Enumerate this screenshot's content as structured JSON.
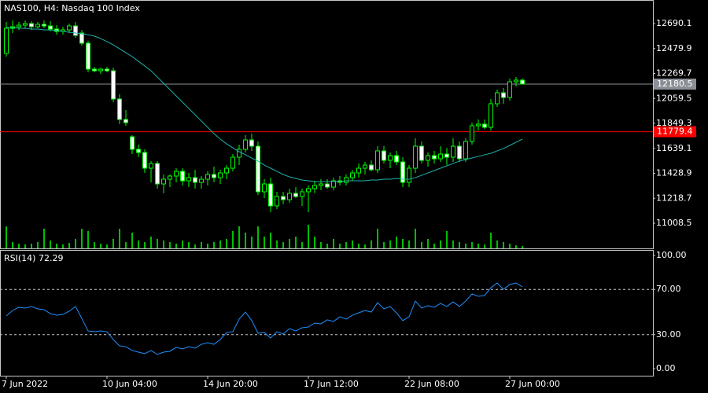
{
  "chart_data": [
    {
      "type": "candlestick",
      "title": "NAS100, H4:  Nasdaq 100 Index",
      "categories": [
        "7 Jun 2022",
        null,
        null,
        null,
        null,
        null,
        null,
        null,
        null,
        null,
        null,
        null,
        null,
        null,
        null,
        null,
        "10 Jun 04:00",
        null,
        null,
        null,
        null,
        null,
        null,
        null,
        null,
        null,
        null,
        null,
        null,
        null,
        null,
        null,
        "14 Jun 20:00",
        null,
        null,
        null,
        null,
        null,
        null,
        null,
        null,
        null,
        null,
        null,
        null,
        null,
        null,
        null,
        "17 Jun 12:00",
        null,
        null,
        null,
        null,
        null,
        null,
        null,
        null,
        null,
        null,
        null,
        null,
        null,
        null,
        null,
        "22 Jun 08:00",
        null,
        null,
        null,
        null,
        null,
        null,
        null,
        null,
        null,
        null,
        null,
        null,
        null,
        null,
        null,
        "27 Jun 00:00",
        null,
        null
      ],
      "ohlc": [
        [
          12438.5,
          12703.3,
          12412.1,
          12650.4
        ],
        [
          12650.4,
          12716.6,
          12610.7,
          12663.6
        ],
        [
          12663.6,
          12703.3,
          12637.1,
          12676.9
        ],
        [
          12676.9,
          12716.6,
          12650.4,
          12690.1
        ],
        [
          12690.1,
          12710.0,
          12637.1,
          12663.6
        ],
        [
          12663.6,
          12703.3,
          12650.4,
          12683.5
        ],
        [
          12683.5,
          12716.6,
          12650.4,
          12670.2
        ],
        [
          12670.2,
          12710.0,
          12623.9,
          12643.8
        ],
        [
          12643.8,
          12676.9,
          12597.4,
          12623.9
        ],
        [
          12623.9,
          12663.6,
          12597.4,
          12637.1
        ],
        [
          12637.1,
          12690.1,
          12610.7,
          12670.2
        ],
        [
          12670.2,
          12703.3,
          12570.9,
          12590.8
        ],
        [
          12610.7,
          12637.1,
          12504.7,
          12524.6
        ],
        [
          12524.6,
          12544.5,
          12279.7,
          12306.1
        ],
        [
          12306.1,
          12326.0,
          12279.7,
          12292.9
        ],
        [
          12292.9,
          12319.4,
          12266.4,
          12306.1
        ],
        [
          12306.1,
          12326.0,
          12279.7,
          12292.9
        ],
        [
          12292.9,
          12319.4,
          12028.1,
          12054.6
        ],
        [
          12054.6,
          12094.3,
          11842.7,
          11882.5
        ],
        [
          11882.5,
          11961.9,
          11829.5,
          11856.0
        ],
        [
          11736.8,
          11750.1,
          11591.2,
          11630.9
        ],
        [
          11630.9,
          11670.6,
          11564.7,
          11604.4
        ],
        [
          11604.4,
          11630.9,
          11432.3,
          11472.0
        ],
        [
          11472.0,
          11531.6,
          11352.9,
          11511.7
        ],
        [
          11511.7,
          11531.6,
          11299.9,
          11339.6
        ],
        [
          11339.6,
          11419.1,
          11260.2,
          11379.3
        ],
        [
          11379.3,
          11419.1,
          11313.1,
          11405.8
        ],
        [
          11405.8,
          11472.0,
          11352.9,
          11445.5
        ],
        [
          11445.5,
          11472.0,
          11326.4,
          11366.1
        ],
        [
          11366.1,
          11432.3,
          11313.1,
          11392.6
        ],
        [
          11392.6,
          11458.8,
          11299.9,
          11352.9
        ],
        [
          11352.9,
          11405.8,
          11299.9,
          11379.3
        ],
        [
          11379.3,
          11445.5,
          11326.4,
          11419.1
        ],
        [
          11419.1,
          11485.3,
          11352.9,
          11392.6
        ],
        [
          11392.6,
          11458.8,
          11339.6,
          11432.3
        ],
        [
          11432.3,
          11498.5,
          11379.3,
          11472.0
        ],
        [
          11472.0,
          11591.2,
          11445.5,
          11564.7
        ],
        [
          11564.7,
          11670.6,
          11498.5,
          11630.9
        ],
        [
          11630.9,
          11750.1,
          11604.4,
          11710.3
        ],
        [
          11710.3,
          11763.3,
          11617.7,
          11657.4
        ],
        [
          11657.4,
          11697.1,
          11246.9,
          11273.4
        ],
        [
          11273.4,
          11379.3,
          11220.5,
          11339.6
        ],
        [
          11339.6,
          11392.6,
          11101.3,
          11154.3
        ],
        [
          11154.3,
          11273.4,
          11127.8,
          11233.7
        ],
        [
          11233.7,
          11273.4,
          11167.5,
          11207.2
        ],
        [
          11207.2,
          11299.9,
          11180.7,
          11260.2
        ],
        [
          11260.2,
          11313.1,
          11220.5,
          11233.7
        ],
        [
          11233.7,
          11299.9,
          11154.3,
          11273.4
        ],
        [
          11273.4,
          11326.4,
          11101.3,
          11299.9
        ],
        [
          11299.9,
          11366.1,
          11260.2,
          11326.4
        ],
        [
          11326.4,
          11379.3,
          11286.7,
          11339.6
        ],
        [
          11339.6,
          11379.3,
          11299.9,
          11313.1
        ],
        [
          11313.1,
          11392.6,
          11286.7,
          11366.1
        ],
        [
          11366.1,
          11405.8,
          11326.4,
          11352.9
        ],
        [
          11352.9,
          11419.1,
          11326.4,
          11392.6
        ],
        [
          11392.6,
          11458.8,
          11366.1,
          11432.3
        ],
        [
          11432.3,
          11511.7,
          11392.6,
          11472.0
        ],
        [
          11472.0,
          11525.0,
          11419.1,
          11498.5
        ],
        [
          11498.5,
          11538.2,
          11445.5,
          11458.8
        ],
        [
          11458.8,
          11657.4,
          11432.3,
          11617.7
        ],
        [
          11617.7,
          11657.4,
          11511.7,
          11538.2
        ],
        [
          11538.2,
          11604.4,
          11472.0,
          11577.9
        ],
        [
          11577.9,
          11617.7,
          11498.5,
          11525.0
        ],
        [
          11525.0,
          11564.7,
          11313.1,
          11352.9
        ],
        [
          11352.9,
          11498.5,
          11313.1,
          11472.0
        ],
        [
          11472.0,
          11723.6,
          11432.3,
          11657.4
        ],
        [
          11657.4,
          11697.1,
          11511.7,
          11538.2
        ],
        [
          11538.2,
          11604.4,
          11485.3,
          11577.9
        ],
        [
          11577.9,
          11617.7,
          11511.7,
          11551.5
        ],
        [
          11551.5,
          11657.4,
          11525.0,
          11591.2
        ],
        [
          11591.2,
          11644.1,
          11498.5,
          11564.7
        ],
        [
          11564.7,
          11723.6,
          11525.0,
          11657.4
        ],
        [
          11657.4,
          11697.1,
          11525.0,
          11551.5
        ],
        [
          11551.5,
          11723.6,
          11525.0,
          11697.1
        ],
        [
          11697.1,
          11856.0,
          11670.6,
          11829.5
        ],
        [
          11829.5,
          11882.5,
          11789.8,
          11842.7
        ],
        [
          11842.7,
          11882.5,
          11803.0,
          11816.3
        ],
        [
          11816.3,
          12054.6,
          11789.8,
          12014.9
        ],
        [
          12014.9,
          12134.0,
          11988.4,
          12107.5
        ],
        [
          12107.5,
          12147.3,
          12014.9,
          12067.8
        ],
        [
          12067.8,
          12226.7,
          12041.3,
          12200.2
        ],
        [
          12200.2,
          12239.9,
          12160.5,
          12213.5
        ],
        [
          12213.5,
          12226.7,
          12187.0,
          12180.5
        ]
      ],
      "color": "#00ff00",
      "bear_fill": "#ffffff",
      "bull_fill": "#000000",
      "ma": {
        "color": "#20b2aa",
        "values": [
          12657,
          12657,
          12650,
          12650,
          12644,
          12644,
          12637,
          12637,
          12631,
          12624,
          12617,
          12611,
          12604,
          12597,
          12584,
          12564,
          12538,
          12511,
          12478,
          12445,
          12412,
          12372,
          12333,
          12293,
          12240,
          12187,
          12134,
          12081,
          12028,
          11975,
          11922,
          11869,
          11816,
          11763,
          11717,
          11677,
          11644,
          11611,
          11585,
          11558,
          11532,
          11498,
          11472,
          11446,
          11419,
          11399,
          11386,
          11373,
          11366,
          11359,
          11359,
          11359,
          11359,
          11359,
          11366,
          11366,
          11366,
          11366,
          11373,
          11373,
          11379,
          11379,
          11386,
          11379,
          11379,
          11393,
          11412,
          11432,
          11452,
          11472,
          11492,
          11512,
          11532,
          11545,
          11558,
          11571,
          11585,
          11598,
          11618,
          11637,
          11664,
          11691,
          11717
        ]
      },
      "volume": {
        "color": "#00ff00",
        "values": [
          28,
          8,
          6,
          5,
          6,
          8,
          25,
          10,
          6,
          5,
          7,
          12,
          25,
          22,
          8,
          6,
          5,
          12,
          25,
          8,
          20,
          10,
          8,
          15,
          12,
          10,
          8,
          6,
          10,
          8,
          5,
          8,
          6,
          8,
          10,
          12,
          22,
          28,
          20,
          15,
          28,
          15,
          20,
          10,
          8,
          12,
          15,
          8,
          30,
          15,
          8,
          6,
          12,
          6,
          8,
          10,
          6,
          5,
          10,
          25,
          8,
          10,
          15,
          12,
          10,
          25,
          8,
          12,
          6,
          10,
          22,
          10,
          8,
          6,
          8,
          6,
          5,
          20,
          10,
          8,
          6,
          4,
          3
        ]
      },
      "volume_lim": [
        0,
        100
      ],
      "price_lines": [
        {
          "value": 12180.5,
          "color": "#8a8f96"
        },
        {
          "value": 11779.4,
          "color": "#ff0000"
        }
      ],
      "ylim": [
        10796.8,
        12888.7
      ],
      "yticks": [
        12690.1,
        12479.9,
        12269.7,
        12059.5,
        11849.3,
        11639.1,
        11428.9,
        11218.7,
        11008.5
      ]
    },
    {
      "type": "line",
      "title": "RSI(14) 72.29",
      "series": [
        {
          "color": "#1e90ff",
          "values": [
            46.5,
            51.4,
            54.2,
            53.5,
            54.9,
            52.8,
            52.1,
            48.6,
            47.2,
            47.9,
            50.7,
            54.9,
            44.4,
            33.3,
            32.6,
            33.3,
            32.6,
            25.7,
            20.1,
            19.4,
            16.0,
            14.6,
            13.2,
            16.0,
            12.5,
            14.6,
            15.3,
            18.8,
            17.4,
            19.4,
            18.1,
            21.5,
            22.9,
            21.5,
            25.7,
            31.9,
            32.6,
            43.8,
            50.0,
            42.4,
            31.3,
            31.9,
            27.1,
            32.6,
            30.6,
            35.4,
            33.3,
            36.1,
            36.8,
            40.3,
            39.6,
            43.1,
            41.7,
            45.8,
            43.8,
            47.2,
            49.3,
            51.4,
            50.0,
            58.3,
            52.8,
            54.9,
            49.3,
            42.4,
            45.8,
            59.7,
            53.5,
            55.6,
            54.2,
            57.6,
            54.9,
            59.0,
            54.9,
            59.7,
            66.0,
            63.9,
            64.6,
            71.5,
            75.7,
            70.1,
            74.3,
            75.7,
            72.29
          ]
        }
      ],
      "levels": [
        70,
        30
      ],
      "ylim": [
        0,
        100
      ],
      "yticks": [
        {
          "value": 100,
          "label": "100.00"
        },
        {
          "value": 70,
          "label": "70.00"
        },
        {
          "value": 30,
          "label": "30.00"
        },
        {
          "value": 0,
          "label": "0.00"
        }
      ]
    }
  ]
}
